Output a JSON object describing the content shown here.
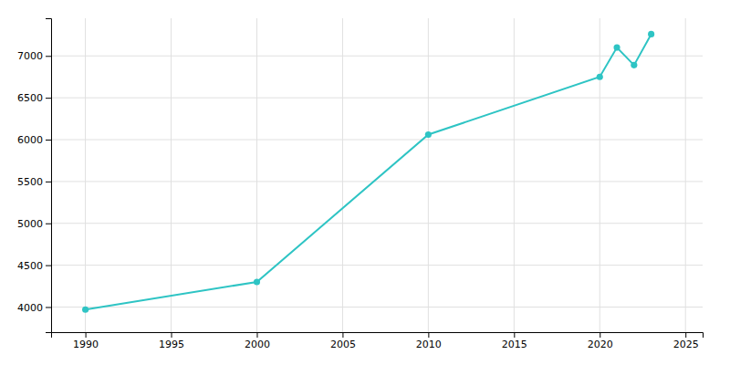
{
  "chart_data": {
    "type": "line",
    "x": [
      1990,
      2000,
      2010,
      2020,
      2021,
      2022,
      2023
    ],
    "values": [
      3970,
      4300,
      6060,
      6750,
      7100,
      6890,
      7260
    ],
    "color": "#2EC4C4",
    "marker": "circle",
    "xlim": [
      1988,
      2026
    ],
    "ylim": [
      3700,
      7450
    ],
    "xticks": [
      1990,
      1995,
      2000,
      2005,
      2010,
      2015,
      2020,
      2025
    ],
    "yticks": [
      4000,
      4500,
      5000,
      5500,
      6000,
      6500,
      7000
    ],
    "grid": true
  }
}
